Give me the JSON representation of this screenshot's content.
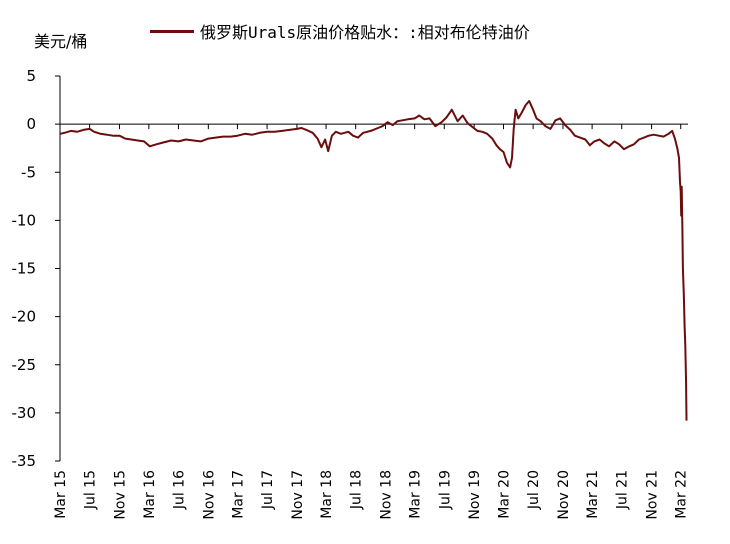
{
  "chart_data": {
    "type": "line",
    "ylabel": "美元/桶",
    "xlabel": "",
    "ylim": [
      -35,
      5
    ],
    "yticks": [
      5,
      0,
      -5,
      -10,
      -15,
      -20,
      -25,
      -30,
      -35
    ],
    "xlim": [
      "2015-03-01",
      "2022-03-31"
    ],
    "xtick_labels": [
      "Mar 15",
      "Jul 15",
      "Nov 15",
      "Mar 16",
      "Jul 16",
      "Nov 16",
      "Mar 17",
      "Jul 17",
      "Nov 17",
      "Mar 18",
      "Jul 18",
      "Nov 18",
      "Mar 19",
      "Jul 19",
      "Nov 19",
      "Mar 20",
      "Jul 20",
      "Nov 20",
      "Mar 21",
      "Jul 21",
      "Nov 21",
      "Mar 22"
    ],
    "xtick_dates": [
      "2015-03-01",
      "2015-07-01",
      "2015-11-01",
      "2016-03-01",
      "2016-07-01",
      "2016-11-01",
      "2017-03-01",
      "2017-07-01",
      "2017-11-01",
      "2018-03-01",
      "2018-07-01",
      "2018-11-01",
      "2019-03-01",
      "2019-07-01",
      "2019-11-01",
      "2020-03-01",
      "2020-07-01",
      "2020-11-01",
      "2021-03-01",
      "2021-07-01",
      "2021-11-01",
      "2022-03-01"
    ],
    "legend": "top",
    "grid": false,
    "color": "#6b0d0d",
    "series": [
      {
        "name": "俄罗斯Urals原油价格贴水：:相对布伦特油价",
        "x": [
          "2015-03-02",
          "2015-03-20",
          "2015-04-15",
          "2015-05-10",
          "2015-06-05",
          "2015-07-01",
          "2015-07-20",
          "2015-08-15",
          "2015-09-10",
          "2015-10-05",
          "2015-11-01",
          "2015-11-25",
          "2015-12-20",
          "2016-01-15",
          "2016-02-10",
          "2016-03-05",
          "2016-04-01",
          "2016-05-01",
          "2016-06-01",
          "2016-07-01",
          "2016-08-01",
          "2016-09-01",
          "2016-10-01",
          "2016-11-01",
          "2016-12-01",
          "2017-01-01",
          "2017-02-01",
          "2017-03-01",
          "2017-04-01",
          "2017-05-01",
          "2017-06-01",
          "2017-07-01",
          "2017-08-01",
          "2017-09-01",
          "2017-10-01",
          "2017-11-01",
          "2017-11-20",
          "2017-12-10",
          "2018-01-05",
          "2018-01-25",
          "2018-02-10",
          "2018-02-25",
          "2018-03-10",
          "2018-03-25",
          "2018-04-10",
          "2018-05-01",
          "2018-06-01",
          "2018-06-20",
          "2018-07-10",
          "2018-08-01",
          "2018-09-01",
          "2018-10-01",
          "2018-10-20",
          "2018-11-10",
          "2018-12-01",
          "2018-12-20",
          "2019-01-10",
          "2019-02-01",
          "2019-03-01",
          "2019-03-20",
          "2019-04-10",
          "2019-05-01",
          "2019-05-25",
          "2019-06-20",
          "2019-07-10",
          "2019-08-01",
          "2019-08-25",
          "2019-09-15",
          "2019-10-05",
          "2019-10-25",
          "2019-11-15",
          "2019-12-05",
          "2019-12-25",
          "2020-01-15",
          "2020-02-01",
          "2020-02-15",
          "2020-03-01",
          "2020-03-15",
          "2020-03-28",
          "2020-04-05",
          "2020-04-12",
          "2020-04-20",
          "2020-05-01",
          "2020-05-15",
          "2020-06-01",
          "2020-06-15",
          "2020-07-01",
          "2020-07-15",
          "2020-08-01",
          "2020-08-20",
          "2020-09-10",
          "2020-10-01",
          "2020-10-20",
          "2020-11-10",
          "2020-12-01",
          "2020-12-20",
          "2021-01-10",
          "2021-02-01",
          "2021-02-20",
          "2021-03-10",
          "2021-04-01",
          "2021-04-20",
          "2021-05-10",
          "2021-06-01",
          "2021-06-20",
          "2021-07-10",
          "2021-08-01",
          "2021-08-20",
          "2021-09-10",
          "2021-10-01",
          "2021-10-20",
          "2021-11-10",
          "2021-12-01",
          "2021-12-20",
          "2022-01-10",
          "2022-01-25",
          "2022-02-05",
          "2022-02-15",
          "2022-02-22",
          "2022-02-26",
          "2022-03-01",
          "2022-03-03",
          "2022-03-05",
          "2022-03-08",
          "2022-03-10",
          "2022-03-14",
          "2022-03-17",
          "2022-03-20",
          "2022-03-23",
          "2022-03-25"
        ],
        "y": [
          -1.0,
          -0.9,
          -0.7,
          -0.8,
          -0.6,
          -0.5,
          -0.8,
          -1.0,
          -1.1,
          -1.2,
          -1.2,
          -1.5,
          -1.6,
          -1.7,
          -1.8,
          -2.3,
          -2.1,
          -1.9,
          -1.7,
          -1.8,
          -1.6,
          -1.7,
          -1.8,
          -1.5,
          -1.4,
          -1.3,
          -1.3,
          -1.2,
          -1.0,
          -1.1,
          -0.9,
          -0.8,
          -0.8,
          -0.7,
          -0.6,
          -0.5,
          -0.4,
          -0.6,
          -0.9,
          -1.5,
          -2.4,
          -1.6,
          -2.8,
          -1.2,
          -0.8,
          -1.0,
          -0.8,
          -1.2,
          -1.4,
          -0.9,
          -0.7,
          -0.4,
          -0.2,
          0.2,
          -0.1,
          0.3,
          0.4,
          0.5,
          0.6,
          0.9,
          0.5,
          0.6,
          -0.2,
          0.2,
          0.7,
          1.5,
          0.3,
          0.9,
          0.1,
          -0.3,
          -0.7,
          -0.8,
          -1.0,
          -1.5,
          -2.2,
          -2.6,
          -2.9,
          -4.0,
          -4.5,
          -3.5,
          -0.5,
          1.5,
          0.6,
          1.2,
          2.0,
          2.4,
          1.5,
          0.6,
          0.3,
          -0.2,
          -0.5,
          0.4,
          0.6,
          -0.1,
          -0.6,
          -1.2,
          -1.4,
          -1.6,
          -2.2,
          -1.8,
          -1.6,
          -2.0,
          -2.3,
          -1.8,
          -2.1,
          -2.6,
          -2.3,
          -2.1,
          -1.6,
          -1.4,
          -1.2,
          -1.1,
          -1.2,
          -1.3,
          -1.0,
          -0.7,
          -1.5,
          -2.5,
          -3.5,
          -6.0,
          -7.0,
          -9.5,
          -6.5,
          -11.0,
          -15.0,
          -18.0,
          -21.0,
          -23.0,
          -27.0,
          -30.8
        ]
      }
    ]
  }
}
